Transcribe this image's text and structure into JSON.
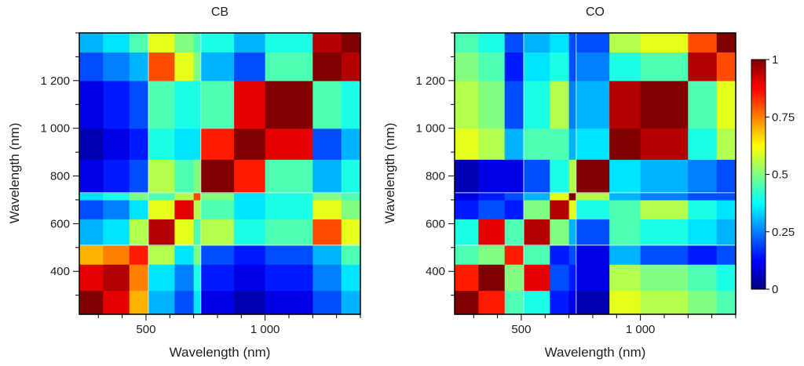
{
  "chart_data": [
    {
      "type": "heatmap",
      "title": "CB",
      "xlabel": "Wavelength (nm)",
      "ylabel": "Wavelength (nm)",
      "xlim": [
        220,
        1400
      ],
      "ylim": [
        220,
        1400
      ],
      "xticks": [
        500,
        1000
      ],
      "xtick_labels": [
        "500",
        "1 000"
      ],
      "yticks": [
        400,
        600,
        800,
        1000,
        1200
      ],
      "ytick_labels": [
        "400",
        "600",
        "800",
        "1 000",
        "1 200"
      ],
      "block_edges": [
        220,
        320,
        430,
        510,
        620,
        700,
        730,
        870,
        1000,
        1200,
        1320,
        1400
      ],
      "values": [
        [
          1.0,
          0.9,
          0.7,
          0.3,
          0.2,
          0.35,
          0.1,
          0.05,
          0.1,
          0.2,
          0.3
        ],
        [
          0.9,
          0.95,
          0.75,
          0.35,
          0.25,
          0.4,
          0.15,
          0.1,
          0.15,
          0.25,
          0.35
        ],
        [
          0.7,
          0.75,
          0.85,
          0.55,
          0.35,
          0.5,
          0.2,
          0.15,
          0.2,
          0.3,
          0.45
        ],
        [
          0.3,
          0.35,
          0.55,
          0.95,
          0.6,
          0.45,
          0.55,
          0.4,
          0.45,
          0.8,
          0.6
        ],
        [
          0.2,
          0.25,
          0.35,
          0.6,
          0.9,
          0.55,
          0.45,
          0.35,
          0.4,
          0.6,
          0.5
        ],
        [
          0.35,
          0.4,
          0.5,
          0.45,
          0.55,
          0.8,
          0.5,
          0.35,
          0.4,
          0.5,
          0.45
        ],
        [
          0.1,
          0.15,
          0.2,
          0.55,
          0.45,
          0.5,
          1.0,
          0.85,
          0.45,
          0.3,
          0.4
        ],
        [
          0.05,
          0.1,
          0.15,
          0.4,
          0.35,
          0.35,
          0.85,
          1.0,
          0.9,
          0.2,
          0.3
        ],
        [
          0.1,
          0.15,
          0.2,
          0.45,
          0.4,
          0.4,
          0.45,
          0.9,
          1.0,
          0.45,
          0.4
        ],
        [
          0.2,
          0.25,
          0.3,
          0.8,
          0.6,
          0.5,
          0.3,
          0.2,
          0.45,
          1.0,
          0.95
        ],
        [
          0.3,
          0.35,
          0.45,
          0.6,
          0.5,
          0.45,
          0.4,
          0.3,
          0.4,
          0.95,
          1.0
        ]
      ]
    },
    {
      "type": "heatmap",
      "title": "CO",
      "xlabel": "Wavelength (nm)",
      "ylabel": "Wavelength (nm)",
      "xlim": [
        220,
        1400
      ],
      "ylim": [
        220,
        1400
      ],
      "xticks": [
        500,
        1000
      ],
      "xtick_labels": [
        "500",
        "1 000"
      ],
      "yticks": [
        400,
        600,
        800,
        1000,
        1200
      ],
      "ytick_labels": [
        "400",
        "600",
        "800",
        "1 000",
        "1 200"
      ],
      "block_edges": [
        220,
        320,
        430,
        510,
        620,
        700,
        730,
        870,
        1000,
        1200,
        1320,
        1400
      ],
      "values": [
        [
          1.0,
          0.85,
          0.45,
          0.4,
          0.15,
          0.1,
          0.05,
          0.6,
          0.55,
          0.5,
          0.45
        ],
        [
          0.85,
          1.0,
          0.5,
          0.9,
          0.2,
          0.15,
          0.1,
          0.55,
          0.5,
          0.45,
          0.4
        ],
        [
          0.45,
          0.5,
          0.85,
          0.45,
          0.15,
          0.2,
          0.1,
          0.3,
          0.2,
          0.15,
          0.2
        ],
        [
          0.4,
          0.9,
          0.45,
          0.95,
          0.5,
          0.3,
          0.2,
          0.45,
          0.4,
          0.35,
          0.3
        ],
        [
          0.15,
          0.2,
          0.15,
          0.5,
          0.95,
          0.6,
          0.4,
          0.45,
          0.55,
          0.4,
          0.35
        ],
        [
          0.1,
          0.15,
          0.2,
          0.3,
          0.6,
          1.0,
          0.55,
          0.3,
          0.25,
          0.2,
          0.2
        ],
        [
          0.05,
          0.1,
          0.1,
          0.2,
          0.4,
          0.55,
          1.0,
          0.35,
          0.3,
          0.25,
          0.2
        ],
        [
          0.6,
          0.55,
          0.3,
          0.45,
          0.45,
          0.3,
          0.35,
          1.0,
          0.95,
          0.4,
          0.55
        ],
        [
          0.55,
          0.5,
          0.2,
          0.4,
          0.55,
          0.25,
          0.3,
          0.95,
          1.0,
          0.45,
          0.6
        ],
        [
          0.5,
          0.45,
          0.15,
          0.35,
          0.4,
          0.2,
          0.25,
          0.4,
          0.45,
          0.95,
          0.8
        ],
        [
          0.45,
          0.4,
          0.2,
          0.3,
          0.35,
          0.2,
          0.2,
          0.55,
          0.6,
          0.8,
          1.0
        ]
      ]
    }
  ],
  "colorbar": {
    "colormap": "jet",
    "range": [
      0,
      1
    ],
    "ticks": [
      0,
      0.25,
      0.5,
      0.75,
      1
    ],
    "tick_labels": [
      "0",
      "0.25",
      "0.5",
      "0.75",
      "1"
    ]
  }
}
